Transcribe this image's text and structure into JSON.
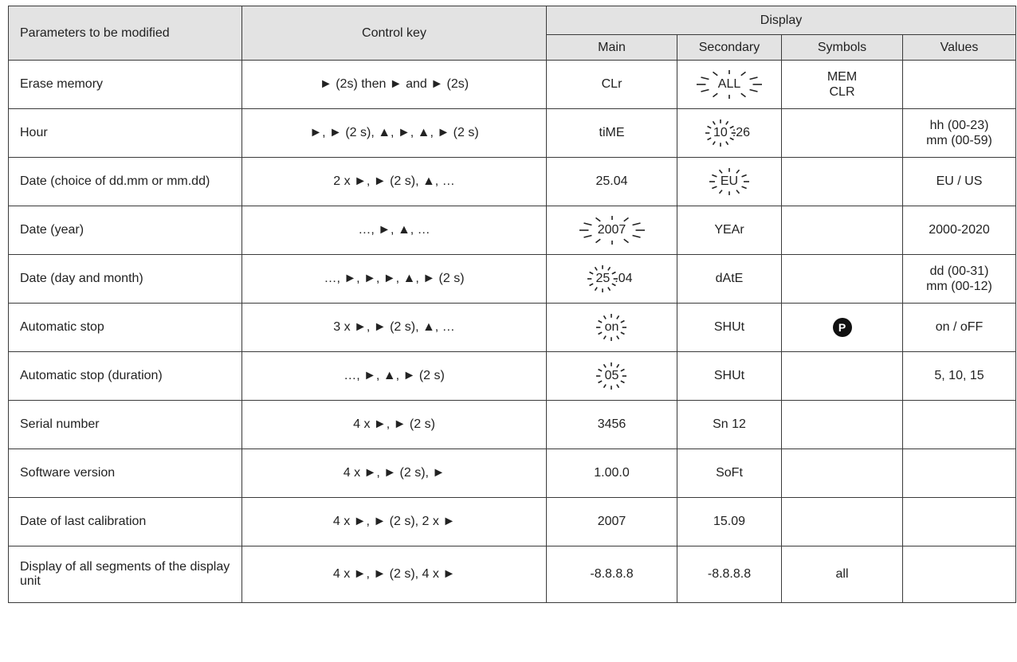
{
  "header": {
    "parameters": "Parameters to be modified",
    "control_key": "Control key",
    "display": "Display",
    "main": "Main",
    "secondary": "Secondary",
    "symbols": "Symbols",
    "values": "Values"
  },
  "rows": [
    {
      "parameter": "Erase memory",
      "control": "► (2s) then ► and ► (2s)",
      "main": "CLr",
      "secondary": "ALL",
      "symbols_line1": "MEM",
      "symbols_line2": "CLR",
      "values_line1": "",
      "values_line2": ""
    },
    {
      "parameter": "Hour",
      "control": "►, ► (2 s), ▲, ►, ▲, ► (2 s)",
      "main": "tiME",
      "secondary_blink": "10",
      "secondary_rest": ":26",
      "values_line1": "hh (00-23)",
      "values_line2": "mm (00-59)"
    },
    {
      "parameter": "Date (choice of dd.mm or mm.dd)",
      "control": "2 x ►, ► (2 s), ▲, …",
      "main": "25.04",
      "secondary": "EU",
      "values_line1": "EU / US"
    },
    {
      "parameter": "Date (year)",
      "control": "…, ►, ▲, …",
      "main": "2007",
      "secondary": "YEAr",
      "values_line1": "2000-2020"
    },
    {
      "parameter": "Date (day and month)",
      "control": "…, ►, ►, ►, ▲, ► (2 s)",
      "main_blink": "25",
      "main_rest": ".04",
      "secondary": "dAtE",
      "values_line1": "dd (00-31)",
      "values_line2": "mm (00-12)"
    },
    {
      "parameter": "Automatic stop",
      "control": "3 x ►, ► (2 s), ▲, …",
      "main": "on",
      "secondary": "SHUt",
      "symbol_icon": "P",
      "values_line1": "on / oFF"
    },
    {
      "parameter": "Automatic stop (duration)",
      "control": "…, ►, ▲, ► (2 s)",
      "main": "05",
      "secondary": "SHUt",
      "values_line1": "5, 10, 15"
    },
    {
      "parameter": "Serial number",
      "control": "4 x ►, ► (2 s)",
      "main": "3456",
      "secondary": "Sn 12"
    },
    {
      "parameter": "Software version",
      "control": "4 x ►, ► (2 s), ►",
      "main": "1.00.0",
      "secondary": "SoFt"
    },
    {
      "parameter": "Date of last calibration",
      "control": "4 x ►, ► (2 s), 2 x ►",
      "main": "2007",
      "secondary": "15.09"
    },
    {
      "parameter": "Display of all segments of the display unit",
      "control": "4 x ►, ► (2 s), 4 x ►",
      "main": "-8.8.8.8",
      "secondary": "-8.8.8.8",
      "symbols": "all"
    }
  ]
}
